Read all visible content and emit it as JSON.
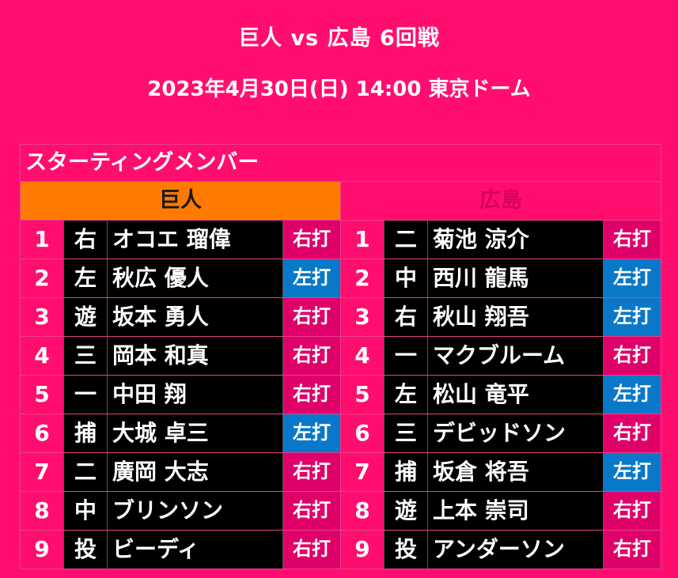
{
  "title": "巨人 vs 広島 6回戦",
  "subtitle": "2023年4月30日(日) 14:00 東京ドーム",
  "heading": "スターティングメンバー",
  "home": {
    "team": "巨人",
    "lineup": [
      {
        "order": "1",
        "pos": "右",
        "name": "オコエ 瑠偉",
        "hand": "右打"
      },
      {
        "order": "2",
        "pos": "左",
        "name": "秋広 優人",
        "hand": "左打"
      },
      {
        "order": "3",
        "pos": "遊",
        "name": "坂本 勇人",
        "hand": "右打"
      },
      {
        "order": "4",
        "pos": "三",
        "name": "岡本 和真",
        "hand": "右打"
      },
      {
        "order": "5",
        "pos": "一",
        "name": "中田 翔",
        "hand": "右打"
      },
      {
        "order": "6",
        "pos": "捕",
        "name": "大城 卓三",
        "hand": "左打"
      },
      {
        "order": "7",
        "pos": "二",
        "name": "廣岡 大志",
        "hand": "右打"
      },
      {
        "order": "8",
        "pos": "中",
        "name": "ブリンソン",
        "hand": "右打"
      },
      {
        "order": "9",
        "pos": "投",
        "name": "ビーディ",
        "hand": "右打"
      }
    ]
  },
  "away": {
    "team": "広島",
    "lineup": [
      {
        "order": "1",
        "pos": "二",
        "name": "菊池 涼介",
        "hand": "右打"
      },
      {
        "order": "2",
        "pos": "中",
        "name": "西川 龍馬",
        "hand": "左打"
      },
      {
        "order": "3",
        "pos": "右",
        "name": "秋山 翔吾",
        "hand": "左打"
      },
      {
        "order": "4",
        "pos": "一",
        "name": "マクブルーム",
        "hand": "右打"
      },
      {
        "order": "5",
        "pos": "左",
        "name": "松山 竜平",
        "hand": "左打"
      },
      {
        "order": "6",
        "pos": "三",
        "name": "デビッドソン",
        "hand": "右打"
      },
      {
        "order": "7",
        "pos": "捕",
        "name": "坂倉 将吾",
        "hand": "左打"
      },
      {
        "order": "8",
        "pos": "遊",
        "name": "上本 崇司",
        "hand": "右打"
      },
      {
        "order": "9",
        "pos": "投",
        "name": "アンダーソン",
        "hand": "右打"
      }
    ]
  }
}
